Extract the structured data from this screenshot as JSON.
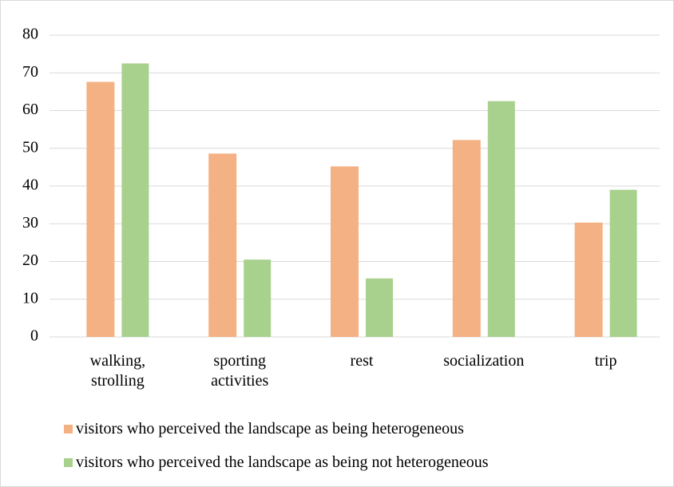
{
  "chart_data": {
    "type": "bar",
    "categories": [
      "walking, strolling",
      "sporting activities",
      "rest",
      "socialization",
      "trip"
    ],
    "series": [
      {
        "name": "visitors who perceived the landscape as being heterogeneous",
        "color": "#f4b183",
        "values": [
          67.6,
          48.6,
          45.2,
          52.2,
          30.3
        ]
      },
      {
        "name": "visitors who perceived the landscape as being not heterogeneous",
        "color": "#a9d18e",
        "values": [
          72.5,
          20.5,
          15.5,
          62.5,
          39.0
        ]
      }
    ],
    "ylim": [
      0,
      80
    ],
    "yticks": [
      0,
      10,
      20,
      30,
      40,
      50,
      60,
      70,
      80
    ],
    "grid": true,
    "legend": "bottom"
  }
}
